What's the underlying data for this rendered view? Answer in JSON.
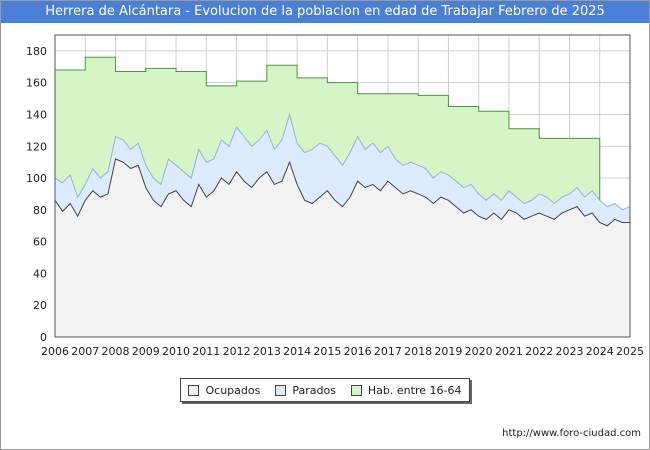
{
  "title": "Herrera de Alcántara - Evolucion de la poblacion en edad de Trabajar Febrero de 2025",
  "source_url": "http://www.foro-ciudad.com",
  "colors": {
    "title_bg": "#4a7fd8",
    "ocupados_fill": "#f2f2f2",
    "ocupados_line": "#444444",
    "parados_fill": "#dcebfb",
    "parados_line": "#8fb3dd",
    "hab_fill": "#d5f5c6",
    "hab_line": "#4a9a3a"
  },
  "legend": [
    {
      "label": "Ocupados",
      "color": "#f2f2f2"
    },
    {
      "label": "Parados",
      "color": "#dcebfb"
    },
    {
      "label": "Hab. entre 16-64",
      "color": "#d5f5c6"
    }
  ],
  "chart_data": {
    "type": "area",
    "title": "Herrera de Alcántara - Evolucion de la poblacion en edad de Trabajar Febrero de 2025",
    "xlim": [
      2006,
      2025
    ],
    "ylim": [
      0,
      190
    ],
    "x_ticks": [
      "2006",
      "2007",
      "2008",
      "2009",
      "2010",
      "2011",
      "2012",
      "2013",
      "2014",
      "2015",
      "2016",
      "2017",
      "2018",
      "2019",
      "2020",
      "2021",
      "2022",
      "2023",
      "2024",
      "2025"
    ],
    "y_ticks": [
      0,
      20,
      40,
      60,
      80,
      100,
      120,
      140,
      160,
      180
    ],
    "grid": true,
    "legend_position": "bottom",
    "hab_16_64": {
      "name": "Hab. entre 16-64",
      "years": [
        2006,
        2007,
        2008,
        2009,
        2010,
        2011,
        2012,
        2013,
        2014,
        2015,
        2016,
        2017,
        2018,
        2019,
        2020,
        2021,
        2022,
        2023
      ],
      "values": [
        168,
        176,
        167,
        169,
        167,
        158,
        161,
        171,
        163,
        160,
        153,
        153,
        152,
        145,
        142,
        131,
        125,
        125
      ]
    },
    "parados_top": {
      "name": "Parados",
      "x": [
        2006.0,
        2006.25,
        2006.5,
        2006.75,
        2007.0,
        2007.25,
        2007.5,
        2007.75,
        2008.0,
        2008.25,
        2008.5,
        2008.75,
        2009.0,
        2009.25,
        2009.5,
        2009.75,
        2010.0,
        2010.25,
        2010.5,
        2010.75,
        2011.0,
        2011.25,
        2011.5,
        2011.75,
        2012.0,
        2012.25,
        2012.5,
        2012.75,
        2013.0,
        2013.25,
        2013.5,
        2013.75,
        2014.0,
        2014.25,
        2014.5,
        2014.75,
        2015.0,
        2015.25,
        2015.5,
        2015.75,
        2016.0,
        2016.25,
        2016.5,
        2016.75,
        2017.0,
        2017.25,
        2017.5,
        2017.75,
        2018.0,
        2018.25,
        2018.5,
        2018.75,
        2019.0,
        2019.25,
        2019.5,
        2019.75,
        2020.0,
        2020.25,
        2020.5,
        2020.75,
        2021.0,
        2021.25,
        2021.5,
        2021.75,
        2022.0,
        2022.25,
        2022.5,
        2022.75,
        2023.0,
        2023.25,
        2023.5,
        2023.75,
        2024.0,
        2024.25,
        2024.5,
        2024.75,
        2025.0
      ],
      "values": [
        100,
        97,
        102,
        88,
        96,
        106,
        100,
        104,
        126,
        124,
        118,
        122,
        108,
        100,
        96,
        112,
        108,
        104,
        100,
        118,
        110,
        112,
        124,
        120,
        132,
        126,
        120,
        124,
        130,
        118,
        124,
        140,
        122,
        116,
        118,
        122,
        120,
        114,
        108,
        116,
        126,
        118,
        122,
        116,
        120,
        112,
        108,
        110,
        108,
        106,
        100,
        104,
        102,
        98,
        94,
        96,
        90,
        86,
        90,
        86,
        92,
        88,
        84,
        86,
        90,
        88,
        84,
        88,
        90,
        94,
        88,
        92,
        86,
        82,
        84,
        80,
        82
      ]
    },
    "ocupados": {
      "name": "Ocupados",
      "x": [
        2006.0,
        2006.25,
        2006.5,
        2006.75,
        2007.0,
        2007.25,
        2007.5,
        2007.75,
        2008.0,
        2008.25,
        2008.5,
        2008.75,
        2009.0,
        2009.25,
        2009.5,
        2009.75,
        2010.0,
        2010.25,
        2010.5,
        2010.75,
        2011.0,
        2011.25,
        2011.5,
        2011.75,
        2012.0,
        2012.25,
        2012.5,
        2012.75,
        2013.0,
        2013.25,
        2013.5,
        2013.75,
        2014.0,
        2014.25,
        2014.5,
        2014.75,
        2015.0,
        2015.25,
        2015.5,
        2015.75,
        2016.0,
        2016.25,
        2016.5,
        2016.75,
        2017.0,
        2017.25,
        2017.5,
        2017.75,
        2018.0,
        2018.25,
        2018.5,
        2018.75,
        2019.0,
        2019.25,
        2019.5,
        2019.75,
        2020.0,
        2020.25,
        2020.5,
        2020.75,
        2021.0,
        2021.25,
        2021.5,
        2021.75,
        2022.0,
        2022.25,
        2022.5,
        2022.75,
        2023.0,
        2023.25,
        2023.5,
        2023.75,
        2024.0,
        2024.25,
        2024.5,
        2024.75,
        2025.0
      ],
      "values": [
        86,
        79,
        84,
        76,
        86,
        92,
        88,
        90,
        112,
        110,
        106,
        108,
        94,
        86,
        82,
        90,
        92,
        86,
        82,
        96,
        88,
        92,
        100,
        96,
        104,
        98,
        94,
        100,
        104,
        96,
        98,
        110,
        96,
        86,
        84,
        88,
        92,
        86,
        82,
        88,
        98,
        94,
        96,
        92,
        98,
        94,
        90,
        92,
        90,
        88,
        84,
        88,
        86,
        82,
        78,
        80,
        76,
        74,
        78,
        74,
        80,
        78,
        74,
        76,
        78,
        76,
        74,
        78,
        80,
        82,
        76,
        78,
        72,
        70,
        74,
        72,
        72
      ]
    }
  }
}
